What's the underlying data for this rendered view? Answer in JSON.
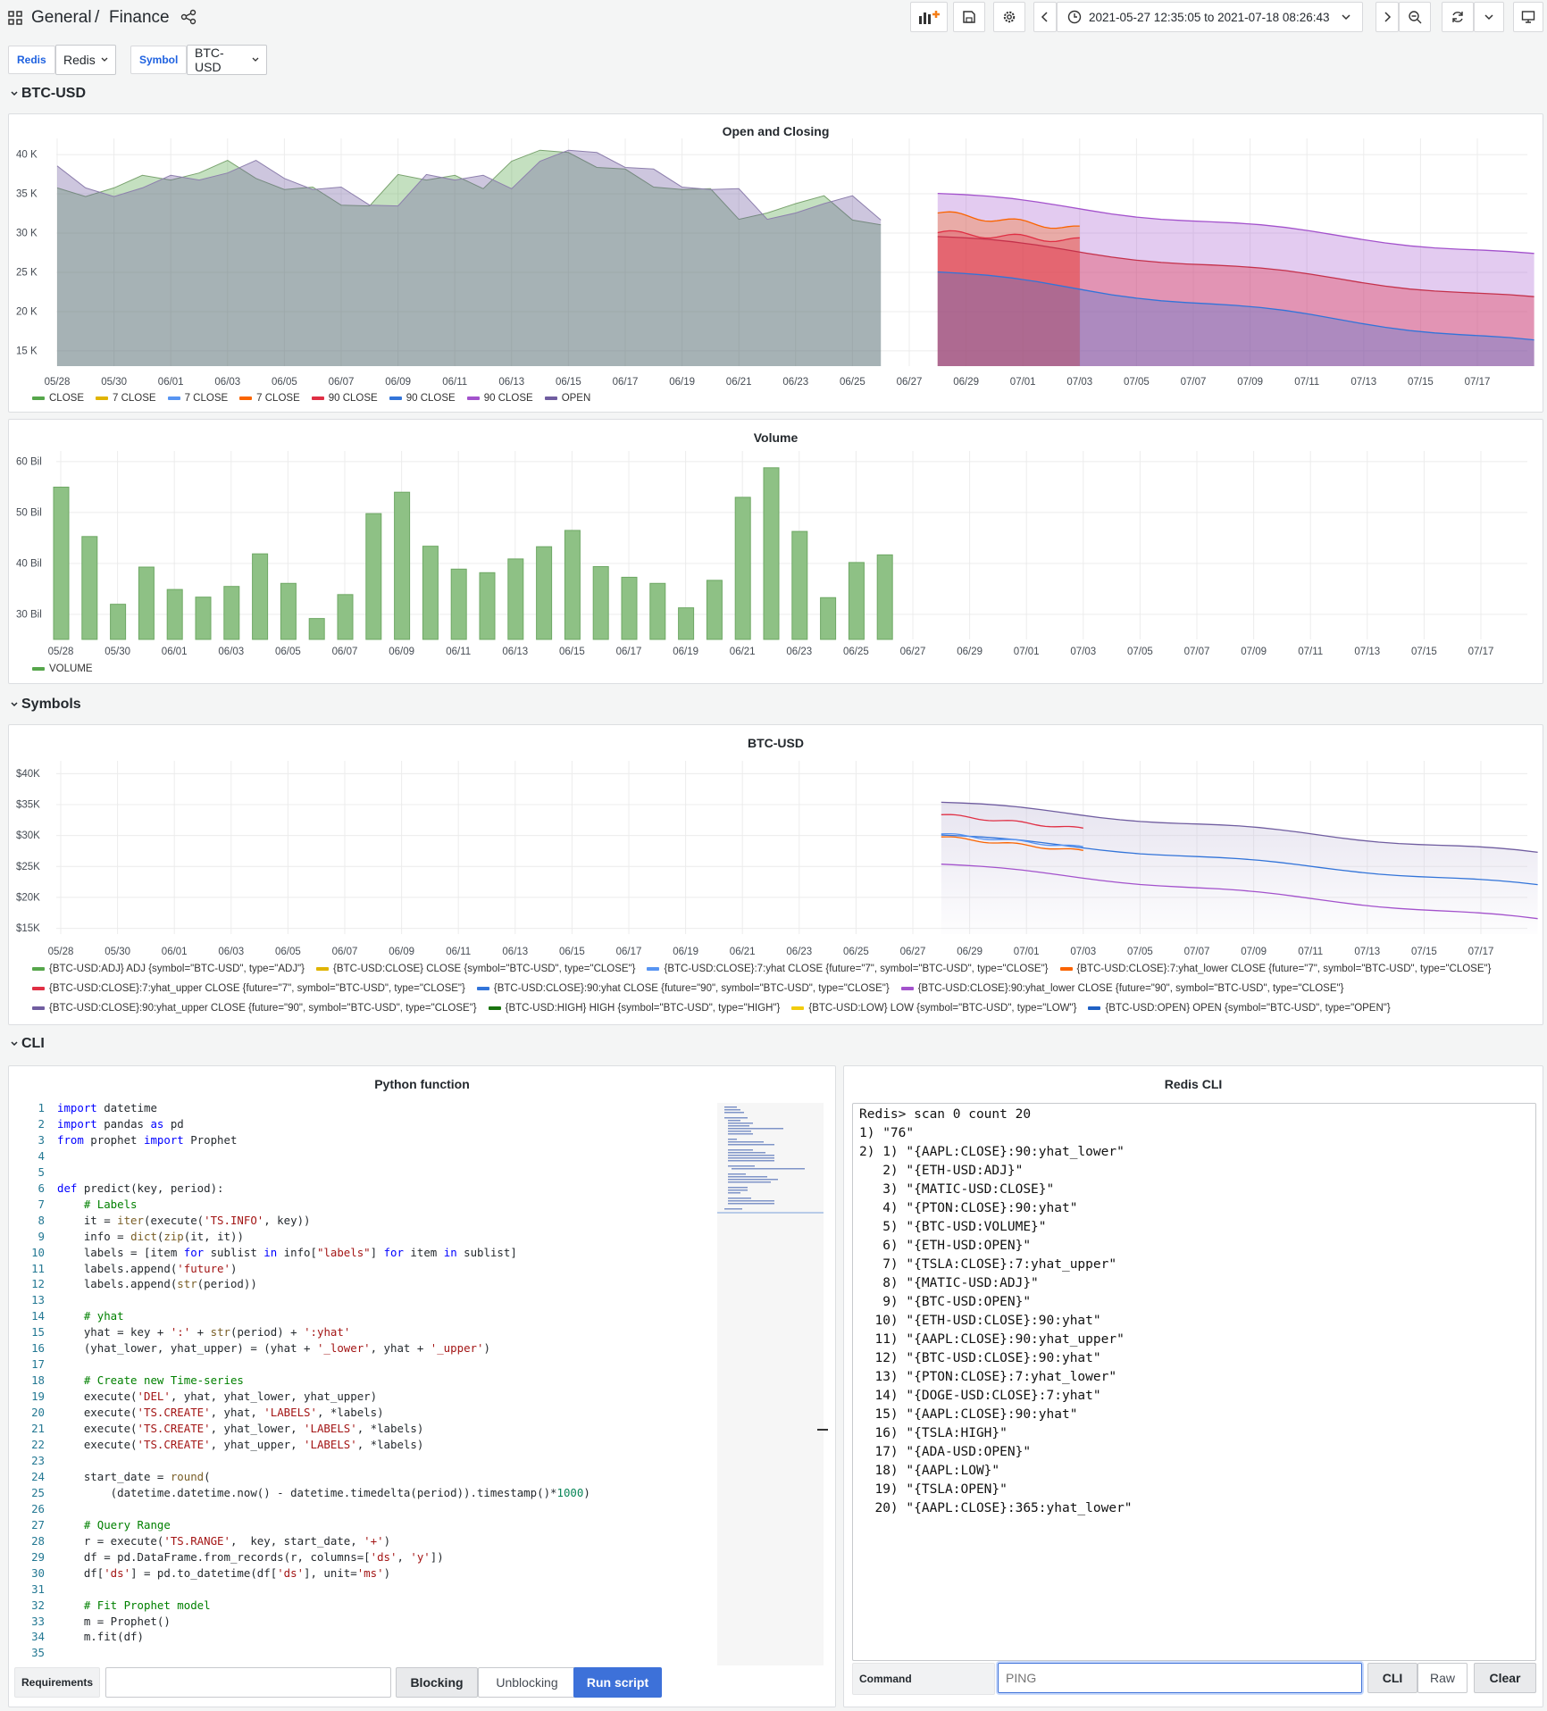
{
  "header": {
    "breadcrumb_parent": "General",
    "breadcrumb_sep": "/",
    "breadcrumb_page": "Finance",
    "time_range": "2021-05-27 12:35:05 to 2021-07-18 08:26:43"
  },
  "variables": [
    {
      "label": "Redis",
      "value": "Redis"
    },
    {
      "label": "Symbol",
      "value": "BTC-USD"
    }
  ],
  "rows": {
    "btc": "BTC-USD",
    "symbols": "Symbols",
    "cli": "CLI"
  },
  "dates": [
    "05/28",
    "05/30",
    "06/01",
    "06/03",
    "06/05",
    "06/07",
    "06/09",
    "06/11",
    "06/13",
    "06/15",
    "06/17",
    "06/19",
    "06/21",
    "06/23",
    "06/25",
    "06/27",
    "06/29",
    "07/01",
    "07/03",
    "07/05",
    "07/07",
    "07/09",
    "07/11",
    "07/13",
    "07/15",
    "07/17"
  ],
  "panels": {
    "open_close": {
      "title": "Open and Closing",
      "yticks": [
        "40 K",
        "35 K",
        "30 K",
        "25 K",
        "20 K",
        "15 K"
      ],
      "legend": [
        {
          "name": "CLOSE",
          "color": "#56a64b"
        },
        {
          "name": "7 CLOSE",
          "color": "#e0b400"
        },
        {
          "name": "7 CLOSE",
          "color": "#5794f2"
        },
        {
          "name": "7 CLOSE",
          "color": "#fa6400"
        },
        {
          "name": "90 CLOSE",
          "color": "#e02f44"
        },
        {
          "name": "90 CLOSE",
          "color": "#3274d9"
        },
        {
          "name": "90 CLOSE",
          "color": "#a352cc"
        },
        {
          "name": "OPEN",
          "color": "#705da0"
        }
      ]
    },
    "volume": {
      "title": "Volume",
      "yticks": [
        "60 Bil",
        "50 Bil",
        "40 Bil",
        "30 Bil"
      ],
      "legend": [
        {
          "name": "VOLUME",
          "color": "#56a64b"
        }
      ]
    },
    "symbols": {
      "title": "BTC-USD",
      "yticks": [
        "$40K",
        "$35K",
        "$30K",
        "$25K",
        "$20K",
        "$15K"
      ],
      "legend": [
        {
          "name": "{BTC-USD:ADJ} ADJ {symbol=\"BTC-USD\", type=\"ADJ\"}",
          "color": "#56a64b"
        },
        {
          "name": "{BTC-USD:CLOSE} CLOSE {symbol=\"BTC-USD\", type=\"CLOSE\"}",
          "color": "#e0b400"
        },
        {
          "name": "{BTC-USD:CLOSE}:7:yhat CLOSE {future=\"7\", symbol=\"BTC-USD\", type=\"CLOSE\"}",
          "color": "#5794f2"
        },
        {
          "name": "{BTC-USD:CLOSE}:7:yhat_lower CLOSE {future=\"7\", symbol=\"BTC-USD\", type=\"CLOSE\"}",
          "color": "#fa6400"
        },
        {
          "name": "{BTC-USD:CLOSE}:7:yhat_upper CLOSE {future=\"7\", symbol=\"BTC-USD\", type=\"CLOSE\"}",
          "color": "#e02f44"
        },
        {
          "name": "{BTC-USD:CLOSE}:90:yhat CLOSE {future=\"90\", symbol=\"BTC-USD\", type=\"CLOSE\"}",
          "color": "#3274d9"
        },
        {
          "name": "{BTC-USD:CLOSE}:90:yhat_lower CLOSE {future=\"90\", symbol=\"BTC-USD\", type=\"CLOSE\"}",
          "color": "#a352cc"
        },
        {
          "name": "{BTC-USD:CLOSE}:90:yhat_upper CLOSE {future=\"90\", symbol=\"BTC-USD\", type=\"CLOSE\"}",
          "color": "#705da0"
        },
        {
          "name": "{BTC-USD:HIGH} HIGH {symbol=\"BTC-USD\", type=\"HIGH\"}",
          "color": "#19730e"
        },
        {
          "name": "{BTC-USD:LOW} LOW {symbol=\"BTC-USD\", type=\"LOW\"}",
          "color": "#f2cc0c"
        },
        {
          "name": "{BTC-USD:OPEN} OPEN {symbol=\"BTC-USD\", type=\"OPEN\"}",
          "color": "#1f60c4"
        }
      ]
    },
    "python": {
      "title": "Python function",
      "requirements_label": "Requirements",
      "blocking_label": "Blocking",
      "unblocking_label": "Unblocking",
      "run_label": "Run script"
    },
    "redis_cli": {
      "title": "Redis CLI",
      "output": "Redis> scan 0 count 20\n1) \"76\"\n2) 1) \"{AAPL:CLOSE}:90:yhat_lower\"\n   2) \"{ETH-USD:ADJ}\"\n   3) \"{MATIC-USD:CLOSE}\"\n   4) \"{PTON:CLOSE}:90:yhat\"\n   5) \"{BTC-USD:VOLUME}\"\n   6) \"{ETH-USD:OPEN}\"\n   7) \"{TSLA:CLOSE}:7:yhat_upper\"\n   8) \"{MATIC-USD:ADJ}\"\n   9) \"{BTC-USD:OPEN}\"\n  10) \"{ETH-USD:CLOSE}:90:yhat\"\n  11) \"{AAPL:CLOSE}:90:yhat_upper\"\n  12) \"{BTC-USD:CLOSE}:90:yhat\"\n  13) \"{PTON:CLOSE}:7:yhat_lower\"\n  14) \"{DOGE-USD:CLOSE}:7:yhat\"\n  15) \"{AAPL:CLOSE}:90:yhat\"\n  16) \"{TSLA:HIGH}\"\n  17) \"{ADA-USD:OPEN}\"\n  18) \"{AAPL:LOW}\"\n  19) \"{TSLA:OPEN}\"\n  20) \"{AAPL:CLOSE}:365:yhat_lower\"",
      "command_label": "Command",
      "command_placeholder": "PING",
      "cli_label": "CLI",
      "raw_label": "Raw",
      "clear_label": "Clear"
    }
  },
  "chart_data": [
    {
      "type": "area",
      "title": "Open and Closing",
      "x": [
        "05/28",
        "05/29",
        "05/30",
        "05/31",
        "06/01",
        "06/02",
        "06/03",
        "06/04",
        "06/05",
        "06/06",
        "06/07",
        "06/08",
        "06/09",
        "06/10",
        "06/11",
        "06/12",
        "06/13",
        "06/14",
        "06/15",
        "06/16",
        "06/17",
        "06/18",
        "06/19",
        "06/20",
        "06/21",
        "06/22",
        "06/23",
        "06/24",
        "06/25",
        "06/26"
      ],
      "ylim": [
        13000,
        42000
      ],
      "series": [
        {
          "name": "CLOSE",
          "values": [
            35700,
            34600,
            35700,
            37300,
            36700,
            37600,
            39200,
            36900,
            35500,
            35800,
            33500,
            33400,
            37400,
            36700,
            37300,
            35600,
            39100,
            40500,
            40200,
            38300,
            38100,
            35800,
            35500,
            35600,
            31700,
            32500,
            33700,
            34700,
            31600,
            31000
          ]
        },
        {
          "name": "OPEN",
          "values": [
            38500,
            35700,
            34600,
            35700,
            37300,
            36700,
            37600,
            39200,
            36900,
            35500,
            35800,
            33500,
            33400,
            37400,
            36700,
            37300,
            35600,
            39100,
            40500,
            40200,
            38300,
            38100,
            35800,
            35500,
            35600,
            31700,
            32500,
            33700,
            34700,
            31600
          ]
        }
      ],
      "forecast": {
        "x_start": "06/27",
        "series": [
          {
            "name": "90 CLOSE (purple, upper)",
            "start": 35000,
            "end": 27000
          },
          {
            "name": "90 CLOSE (red)",
            "start": 29500,
            "end": 21500
          },
          {
            "name": "90 CLOSE (blue)",
            "start": 25000,
            "end": 16000
          },
          {
            "name": "7 CLOSE (orange)",
            "start": 32500,
            "end": 30500
          },
          {
            "name": "7 CLOSE (red)",
            "start": 30000,
            "end": 29000
          }
        ]
      }
    },
    {
      "type": "bar",
      "title": "Volume",
      "x": [
        "05/28",
        "05/29",
        "05/30",
        "05/31",
        "06/01",
        "06/02",
        "06/03",
        "06/04",
        "06/05",
        "06/06",
        "06/07",
        "06/08",
        "06/09",
        "06/10",
        "06/11",
        "06/12",
        "06/13",
        "06/14",
        "06/15",
        "06/16",
        "06/17",
        "06/18",
        "06/19",
        "06/20",
        "06/21",
        "06/22",
        "06/23",
        "06/24",
        "06/25",
        "06/26"
      ],
      "values": [
        54.9,
        45.2,
        31.9,
        39.2,
        34.8,
        33.3,
        35.4,
        41.8,
        36.0,
        29.1,
        33.8,
        49.7,
        53.9,
        43.3,
        38.8,
        38.1,
        40.8,
        43.2,
        46.4,
        39.3,
        37.2,
        36.0,
        31.2,
        36.6,
        52.9,
        58.7,
        46.2,
        33.2,
        40.1,
        41.6
      ],
      "ylabel": "VOLUME",
      "ylim": [
        25,
        62
      ]
    },
    {
      "type": "line",
      "title": "BTC-USD",
      "ylim": [
        14000,
        42000
      ]
    }
  ]
}
